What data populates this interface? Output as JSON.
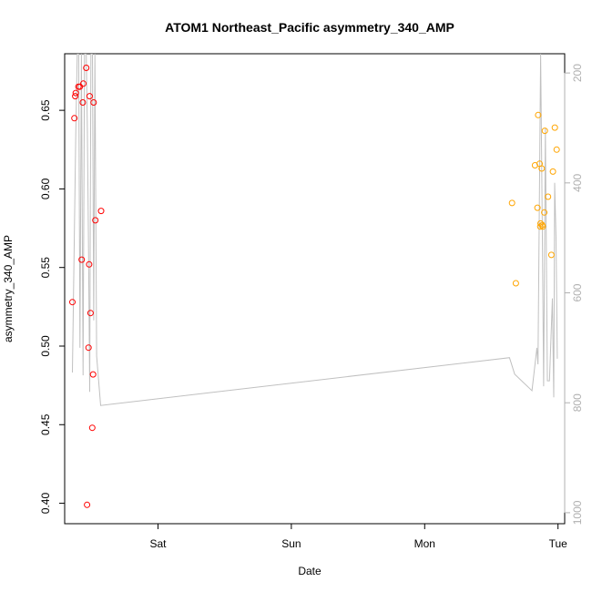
{
  "chart_data": {
    "type": "scatter",
    "title": "ATOM1 Northeast_Pacific asymmetry_340_AMP",
    "xlabel": "Date",
    "ylabel": "asymmetry_340_AMP",
    "x_unit": "days since Fri 00:00",
    "xlim": [
      1.3,
      5.05
    ],
    "ylim": [
      0.387,
      0.686
    ],
    "x_ticks": [
      {
        "value": 2.0,
        "label": "Sat"
      },
      {
        "value": 3.0,
        "label": "Sun"
      },
      {
        "value": 4.0,
        "label": "Mon"
      },
      {
        "value": 5.0,
        "label": "Tue"
      }
    ],
    "y_ticks": [
      {
        "value": 0.4,
        "label": "0.40"
      },
      {
        "value": 0.45,
        "label": "0.45"
      },
      {
        "value": 0.5,
        "label": "0.50"
      },
      {
        "value": 0.55,
        "label": "0.55"
      },
      {
        "value": 0.6,
        "label": "0.60"
      },
      {
        "value": 0.65,
        "label": "0.65"
      }
    ],
    "right_axis": {
      "ylim_top_to_bottom": [
        165,
        1020
      ],
      "ticks": [
        {
          "value": 200,
          "label": "200"
        },
        {
          "value": 400,
          "label": "400"
        },
        {
          "value": 600,
          "label": "600"
        },
        {
          "value": 800,
          "label": "800"
        },
        {
          "value": 1000,
          "label": "1000"
        }
      ]
    },
    "grid": false,
    "series": [
      {
        "name": "",
        "color": "#ff0000",
        "marker": "open-circle",
        "points": [
          [
            1.358,
            0.528
          ],
          [
            1.373,
            0.645
          ],
          [
            1.379,
            0.659
          ],
          [
            1.383,
            0.661
          ],
          [
            1.403,
            0.665
          ],
          [
            1.414,
            0.665
          ],
          [
            1.428,
            0.555
          ],
          [
            1.436,
            0.655
          ],
          [
            1.44,
            0.667
          ],
          [
            1.462,
            0.677
          ],
          [
            1.468,
            0.399
          ],
          [
            1.479,
            0.499
          ],
          [
            1.484,
            0.552
          ],
          [
            1.487,
            0.659
          ],
          [
            1.494,
            0.521
          ],
          [
            1.507,
            0.448
          ],
          [
            1.513,
            0.482
          ],
          [
            1.517,
            0.655
          ],
          [
            1.53,
            0.58
          ],
          [
            1.573,
            0.586
          ]
        ]
      },
      {
        "name": "",
        "color": "#ffa500",
        "marker": "open-circle",
        "points": [
          [
            4.655,
            0.591
          ],
          [
            4.684,
            0.54
          ],
          [
            4.827,
            0.615
          ],
          [
            4.846,
            0.588
          ],
          [
            4.851,
            0.647
          ],
          [
            4.862,
            0.616
          ],
          [
            4.867,
            0.576
          ],
          [
            4.869,
            0.578
          ],
          [
            4.878,
            0.613
          ],
          [
            4.882,
            0.577
          ],
          [
            4.886,
            0.576
          ],
          [
            4.897,
            0.585
          ],
          [
            4.901,
            0.637
          ],
          [
            4.925,
            0.595
          ],
          [
            4.95,
            0.558
          ],
          [
            4.962,
            0.611
          ],
          [
            4.976,
            0.639
          ],
          [
            4.99,
            0.625
          ]
        ]
      }
    ],
    "line_series": {
      "name": "",
      "color": "#c0c0c0",
      "axis": "right",
      "points": [
        [
          1.358,
          745
        ],
        [
          1.383,
          310
        ],
        [
          1.394,
          165
        ],
        [
          1.405,
          165
        ],
        [
          1.415,
          700
        ],
        [
          1.426,
          165
        ],
        [
          1.438,
          750
        ],
        [
          1.449,
          165
        ],
        [
          1.462,
          165
        ],
        [
          1.47,
          300
        ],
        [
          1.478,
          500
        ],
        [
          1.488,
          780
        ],
        [
          1.497,
          165
        ],
        [
          1.508,
          165
        ],
        [
          1.518,
          650
        ],
        [
          1.527,
          165
        ],
        [
          1.54,
          715
        ],
        [
          1.57,
          805
        ],
        [
          4.636,
          718
        ],
        [
          4.675,
          748
        ],
        [
          4.805,
          778
        ],
        [
          4.842,
          700
        ],
        [
          4.85,
          730
        ],
        [
          4.87,
          165
        ],
        [
          4.876,
          320
        ],
        [
          4.882,
          480
        ],
        [
          4.892,
          770
        ],
        [
          4.905,
          300
        ],
        [
          4.92,
          760
        ],
        [
          4.936,
          760
        ],
        [
          4.958,
          610
        ],
        [
          4.968,
          790
        ],
        [
          4.975,
          400
        ],
        [
          4.985,
          500
        ],
        [
          4.995,
          720
        ]
      ]
    }
  }
}
